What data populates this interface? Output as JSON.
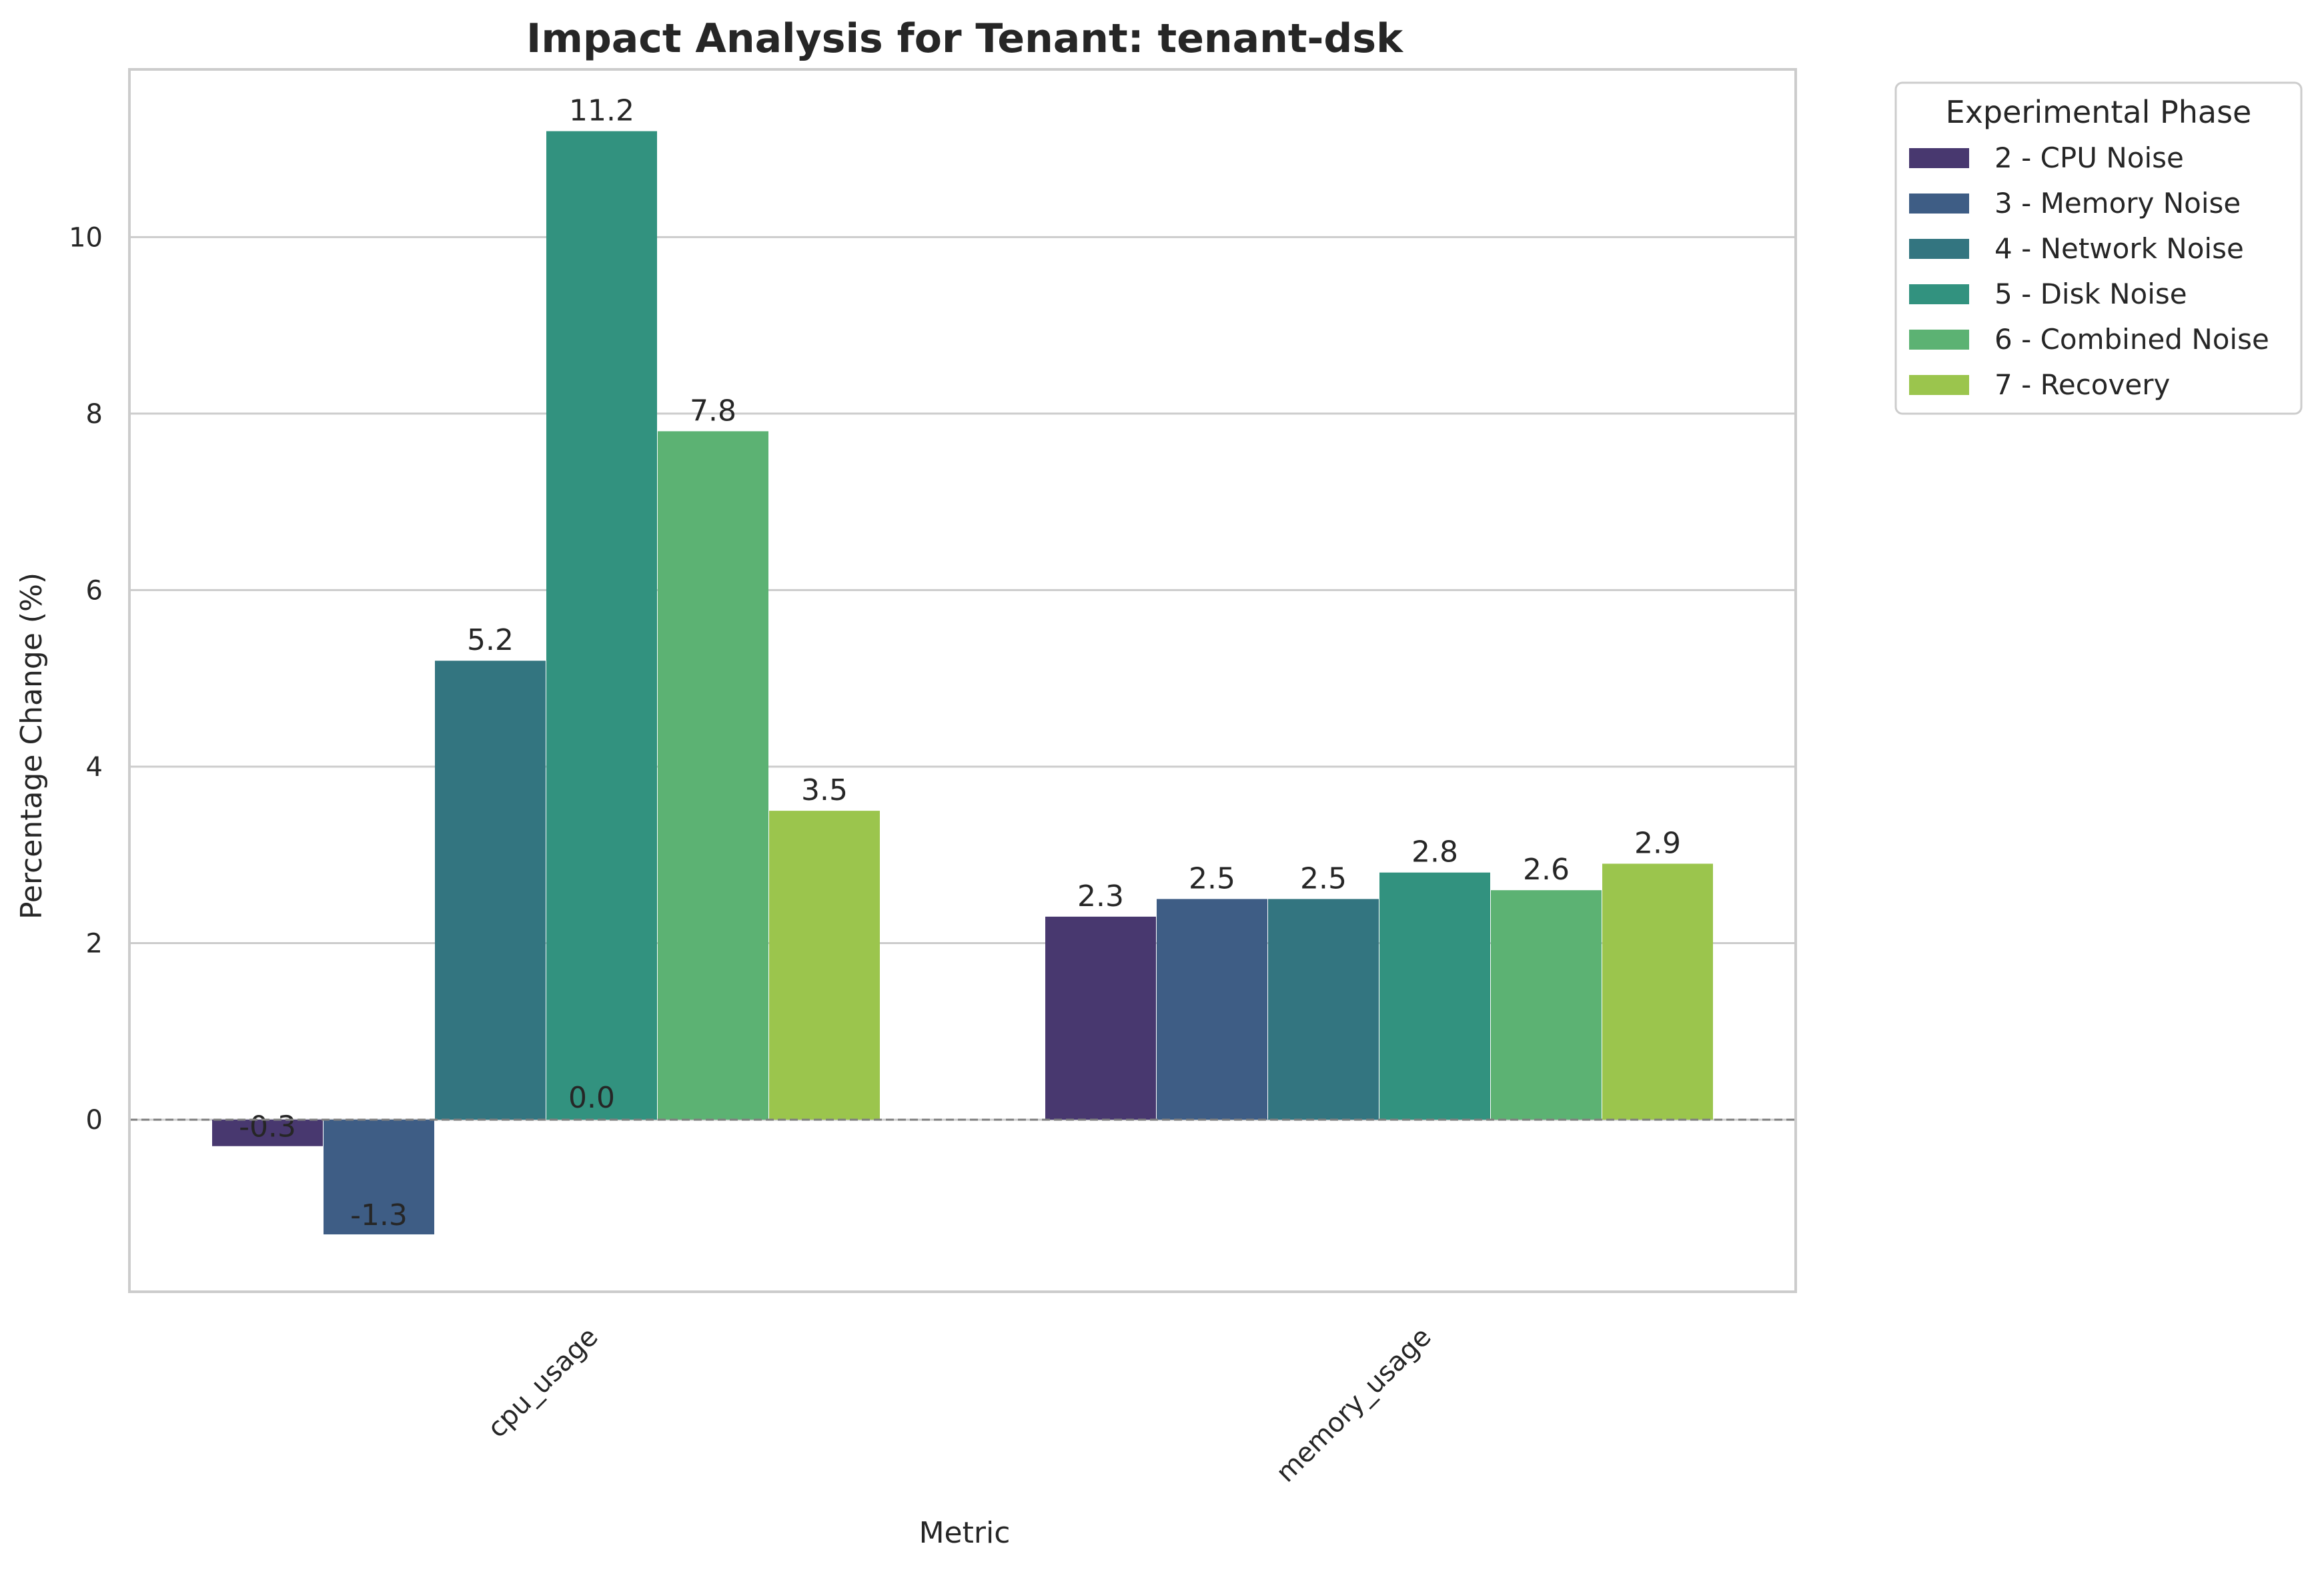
{
  "chart_data": {
    "type": "bar",
    "title": "Impact Analysis for Tenant: tenant-dsk",
    "xlabel": "Metric",
    "ylabel": "Percentage Change (%)",
    "categories": [
      "cpu_usage",
      "memory_usage"
    ],
    "ylim": [
      -1.95,
      11.9
    ],
    "yticks": [
      0,
      2,
      4,
      6,
      8,
      10
    ],
    "grid": true,
    "zero_line": "dashed",
    "legend": {
      "title": "Experimental Phase",
      "position": "outside-right"
    },
    "series": [
      {
        "name": "2 - CPU Noise",
        "color": "#48386f",
        "values": [
          -0.3,
          2.3
        ],
        "labels": [
          "-0.3",
          "2.3"
        ]
      },
      {
        "name": "3 - Memory Noise",
        "color": "#3e5d85",
        "values": [
          -1.3,
          2.5
        ],
        "labels": [
          "-1.3",
          "2.5"
        ]
      },
      {
        "name": "4 - Network Noise",
        "color": "#337580",
        "values": [
          5.2,
          2.5
        ],
        "labels": [
          "5.2",
          "2.5"
        ]
      },
      {
        "name": "5 - Disk Noise",
        "color": "#32927f",
        "values": [
          11.2,
          2.8
        ],
        "labels": [
          "11.2",
          "2.8"
        ]
      },
      {
        "name": "6 - Combined Noise",
        "color": "#5cb273",
        "values": [
          7.8,
          2.6
        ],
        "labels": [
          "7.8",
          "2.6"
        ]
      },
      {
        "name": "7 - Recovery",
        "color": "#9bc54d",
        "values": [
          3.5,
          2.9
        ],
        "labels": [
          "3.5",
          "2.9"
        ]
      }
    ],
    "annotations": [
      {
        "text": "0.0",
        "category": "cpu_usage",
        "series": "4 - Network Noise"
      }
    ]
  }
}
